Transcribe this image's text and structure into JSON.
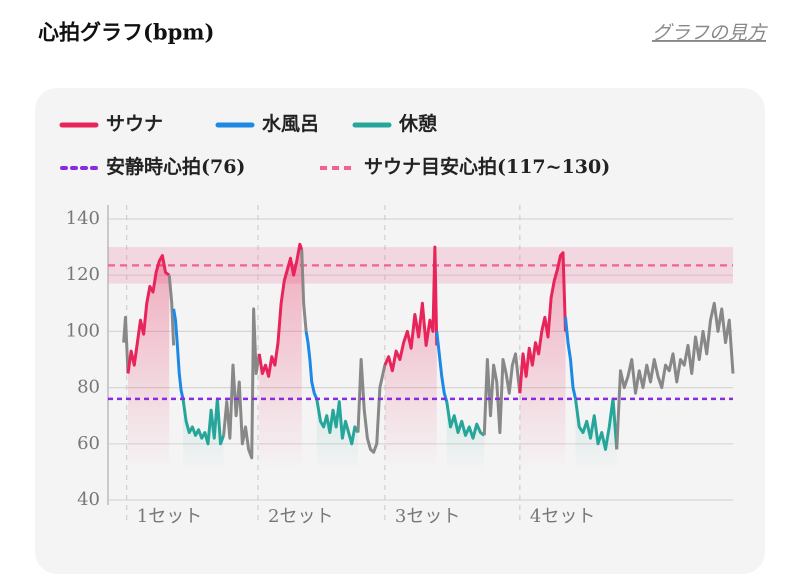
{
  "chart_data": {
    "type": "line",
    "title": "心拍グラフ(bpm)",
    "link": "グラフの見方",
    "series": [
      {
        "name": "サウナ",
        "color": "#e8245a"
      },
      {
        "name": "水風呂",
        "color": "#1e88e5"
      },
      {
        "name": "休憩",
        "color": "#26a69a"
      }
    ],
    "resting": {
      "label": "安静時心拍(76)",
      "value": 76,
      "color": "#8a2be2"
    },
    "sauna_target": {
      "label": "サウナ目安心拍(117~130)",
      "range": [
        117,
        130
      ],
      "color": "#f06292"
    },
    "sets": {
      "categories": [
        "1セット",
        "2セット",
        "3セット",
        "4セット"
      ],
      "x": [
        3,
        24,
        44.3,
        65.9
      ]
    },
    "xlim": [
      0,
      100
    ],
    "ylim": [
      40,
      140
    ],
    "yticks": [
      40,
      60,
      80,
      100,
      120,
      140
    ],
    "grid": true,
    "segments": [
      {
        "color": "#888888",
        "x": [
          2.5,
          2.8,
          3.2
        ],
        "values": [
          96,
          105,
          85
        ]
      },
      {
        "series": 0,
        "x": [
          3.2,
          3.7,
          4.2,
          4.7,
          5.2,
          5.7,
          6.2,
          6.7,
          7.2,
          7.7,
          8.2,
          8.7,
          9.2,
          9.8
        ],
        "values": [
          85,
          93,
          88,
          96,
          104,
          99,
          110,
          116,
          114,
          121,
          125,
          127,
          121,
          120
        ]
      },
      {
        "color": "#888888",
        "x": [
          9.8,
          10.2,
          10.5
        ],
        "values": [
          120,
          110,
          95
        ]
      },
      {
        "series": 1,
        "x": [
          10.5,
          10.8,
          11.1,
          11.4,
          11.7,
          12.0
        ],
        "values": [
          108,
          104,
          95,
          85,
          79,
          76
        ]
      },
      {
        "series": 2,
        "x": [
          12.0,
          12.5,
          13,
          13.5,
          14,
          14.5,
          15,
          15.5,
          16,
          16.5,
          17,
          17.5,
          18,
          18.5
        ],
        "values": [
          76,
          68,
          64,
          66,
          63,
          65,
          62,
          64,
          60,
          72,
          62,
          76,
          60,
          63
        ]
      },
      {
        "color": "#888888",
        "x": [
          18.5,
          19,
          19.5,
          20,
          20.5,
          21,
          21.5,
          22,
          22.5,
          23,
          23.3,
          23.7,
          24.2
        ],
        "values": [
          63,
          75,
          62,
          88,
          70,
          82,
          60,
          66,
          58,
          55,
          108,
          85,
          92
        ]
      },
      {
        "series": 0,
        "x": [
          24.2,
          24.7,
          25.2,
          25.7,
          26.2,
          26.7,
          27.2,
          27.7,
          28.2,
          28.7,
          29.2,
          29.7,
          30.2,
          30.7,
          31.0
        ],
        "values": [
          92,
          85,
          88,
          84,
          91,
          88,
          96,
          110,
          118,
          122,
          126,
          120,
          125,
          131,
          129
        ]
      },
      {
        "color": "#888888",
        "x": [
          31.0,
          31.3,
          31.7
        ],
        "values": [
          129,
          110,
          100
        ]
      },
      {
        "series": 1,
        "x": [
          31.7,
          32,
          32.3,
          32.6,
          33,
          33.4
        ],
        "values": [
          100,
          96,
          90,
          82,
          78,
          76
        ]
      },
      {
        "series": 2,
        "x": [
          33.4,
          34,
          34.5,
          35,
          35.5,
          36,
          36.5,
          37,
          37.5,
          38,
          38.5,
          39,
          39.5,
          40
        ],
        "values": [
          76,
          68,
          66,
          70,
          64,
          72,
          66,
          75,
          62,
          68,
          64,
          60,
          66,
          64
        ]
      },
      {
        "color": "#888888",
        "x": [
          40,
          40.5,
          41,
          41.5,
          42,
          42.5,
          43,
          43.5,
          44.3
        ],
        "values": [
          64,
          90,
          72,
          62,
          58,
          57,
          60,
          80,
          88
        ]
      },
      {
        "series": 0,
        "x": [
          44.3,
          44.9,
          45.5,
          46.1,
          46.7,
          47.3,
          47.9,
          48.5,
          49.1,
          49.7,
          50.3,
          50.9,
          51.5,
          52.0,
          52.3,
          52.6
        ],
        "values": [
          88,
          91,
          86,
          93,
          90,
          96,
          100,
          94,
          106,
          98,
          110,
          95,
          104,
          100,
          130,
          95
        ]
      },
      {
        "series": 1,
        "x": [
          52.6,
          53,
          53.4,
          53.8,
          54.2
        ],
        "values": [
          100,
          92,
          84,
          78,
          75
        ]
      },
      {
        "series": 2,
        "x": [
          54.2,
          54.8,
          55.4,
          56,
          56.6,
          57.2,
          57.8,
          58.4,
          59,
          59.6,
          60.2
        ],
        "values": [
          75,
          66,
          70,
          64,
          68,
          63,
          66,
          62,
          67,
          64,
          63
        ]
      },
      {
        "color": "#888888",
        "x": [
          60.2,
          60.7,
          61.2,
          61.7,
          62.2,
          62.7,
          63.2,
          63.7,
          64.2,
          64.7,
          65.2,
          65.9
        ],
        "values": [
          63,
          90,
          70,
          88,
          82,
          64,
          90,
          85,
          78,
          88,
          92,
          78
        ]
      },
      {
        "series": 0,
        "x": [
          65.9,
          66.4,
          66.9,
          67.4,
          67.9,
          68.4,
          68.9,
          69.4,
          69.9,
          70.4,
          70.9,
          71.4,
          71.9,
          72.4,
          72.8,
          73.2
        ],
        "values": [
          78,
          92,
          84,
          94,
          88,
          96,
          92,
          100,
          105,
          98,
          112,
          118,
          122,
          127,
          128,
          100
        ]
      },
      {
        "series": 1,
        "x": [
          73.2,
          73.6,
          74,
          74.4,
          74.8
        ],
        "values": [
          105,
          96,
          90,
          80,
          76
        ]
      },
      {
        "series": 2,
        "x": [
          74.8,
          75.4,
          76,
          76.6,
          77.2,
          77.8,
          78.4,
          79,
          79.6,
          80.2,
          80.8,
          81.4
        ],
        "values": [
          76,
          66,
          64,
          68,
          62,
          70,
          60,
          64,
          58,
          66,
          76,
          58
        ]
      },
      {
        "color": "#888888",
        "x": [
          81.4,
          82,
          82.6,
          83.2,
          83.8,
          84.4,
          85,
          85.6,
          86.2,
          86.8,
          87.4,
          88,
          88.6,
          89.2,
          89.8,
          90.4,
          91,
          91.6,
          92.2,
          92.8,
          93.4,
          94,
          94.6,
          95.2,
          95.8,
          96.4,
          97,
          97.6,
          98.2,
          98.8,
          99.4,
          100
        ],
        "values": [
          58,
          86,
          80,
          84,
          90,
          78,
          86,
          80,
          88,
          82,
          90,
          84,
          80,
          88,
          86,
          92,
          82,
          90,
          88,
          95,
          85,
          98,
          90,
          100,
          92,
          104,
          110,
          100,
          108,
          96,
          104,
          85
        ]
      }
    ]
  }
}
